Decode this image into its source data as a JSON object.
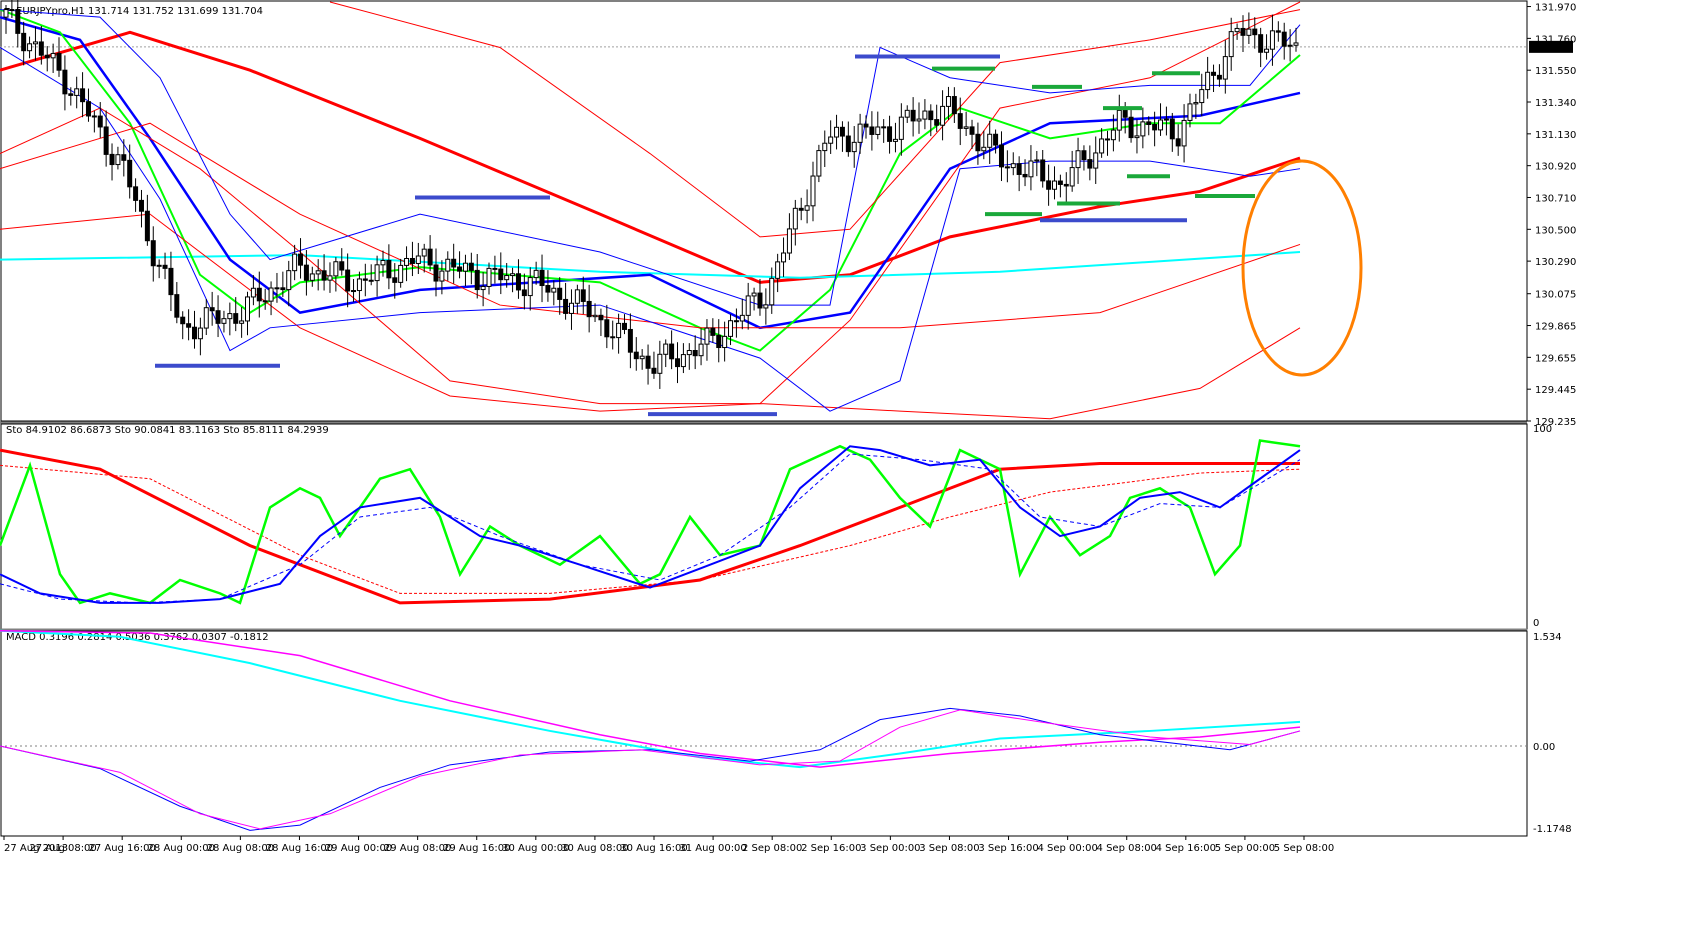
{
  "header": {
    "symbol": "EURJPYpro,H1",
    "ohlc": "131.714 131.752 131.699 131.704",
    "current_price": "131.704"
  },
  "stoch_header": "Sto 84.9102 86.6873  Sto 90.0841 83.1163  Sto 85.8111 84.2939",
  "macd_header": "MACD 0.3196 0.2814 0.5036 0.3762 0.0307 -0.1812",
  "price_ticks": [
    "131.970",
    "131.760",
    "131.550",
    "131.340",
    "131.130",
    "130.920",
    "130.710",
    "130.500",
    "130.290",
    "130.075",
    "129.865",
    "129.655",
    "129.445",
    "129.235"
  ],
  "stoch_ticks": [
    "100",
    "0"
  ],
  "macd_ticks": [
    "1.534",
    "0.00",
    "-1.1748"
  ],
  "time_labels": [
    "27 Aug 2013",
    "27 Aug 08:00",
    "27 Aug 16:00",
    "28 Aug 00:00",
    "28 Aug 08:00",
    "28 Aug 16:00",
    "29 Aug 00:00",
    "29 Aug 08:00",
    "29 Aug 16:00",
    "30 Aug 00:00",
    "30 Aug 08:00",
    "30 Aug 16:00",
    "31 Aug 00:00",
    "2 Sep 08:00",
    "2 Sep 16:00",
    "3 Sep 00:00",
    "3 Sep 08:00",
    "3 Sep 16:00",
    "4 Sep 00:00",
    "4 Sep 08:00",
    "4 Sep 16:00",
    "5 Sep 00:00",
    "5 Sep 08:00"
  ],
  "colors": {
    "bg": "#ffffff",
    "grid": "#c0c0c0",
    "red": "#ff0000",
    "blue": "#0000ff",
    "green": "#00ff00",
    "cyan": "#00ffff",
    "magenta": "#ff00ff",
    "orange": "#ff7f00",
    "support": "#3c4bcc",
    "green_marks": "#1aa83a",
    "candle": "#000000"
  },
  "chart_data": [
    {
      "type": "line",
      "name": "price",
      "x": [
        "27 Aug 2013",
        "27 Aug 08:00",
        "27 Aug 16:00",
        "28 Aug 00:00",
        "28 Aug 08:00",
        "28 Aug 16:00",
        "29 Aug 00:00",
        "29 Aug 08:00",
        "29 Aug 16:00",
        "30 Aug 00:00",
        "30 Aug 08:00",
        "30 Aug 16:00",
        "31 Aug 00:00",
        "2 Sep 08:00",
        "2 Sep 16:00",
        "3 Sep 00:00",
        "3 Sep 08:00",
        "3 Sep 16:00",
        "4 Sep 00:00",
        "4 Sep 08:00",
        "4 Sep 16:00",
        "5 Sep 00:00",
        "5 Sep 08:00"
      ],
      "close": [
        131.9,
        131.5,
        130.9,
        129.85,
        129.95,
        130.25,
        130.15,
        130.3,
        130.2,
        130.15,
        129.95,
        129.6,
        129.75,
        130.1,
        131.1,
        131.15,
        131.3,
        130.95,
        130.8,
        131.2,
        131.15,
        131.8,
        131.704
      ],
      "ylim": [
        129.235,
        132.0
      ]
    },
    {
      "type": "line",
      "name": "stochastic",
      "ylim": [
        0,
        100
      ]
    },
    {
      "type": "line",
      "name": "macd",
      "ylim": [
        -1.1748,
        1.534
      ]
    }
  ]
}
